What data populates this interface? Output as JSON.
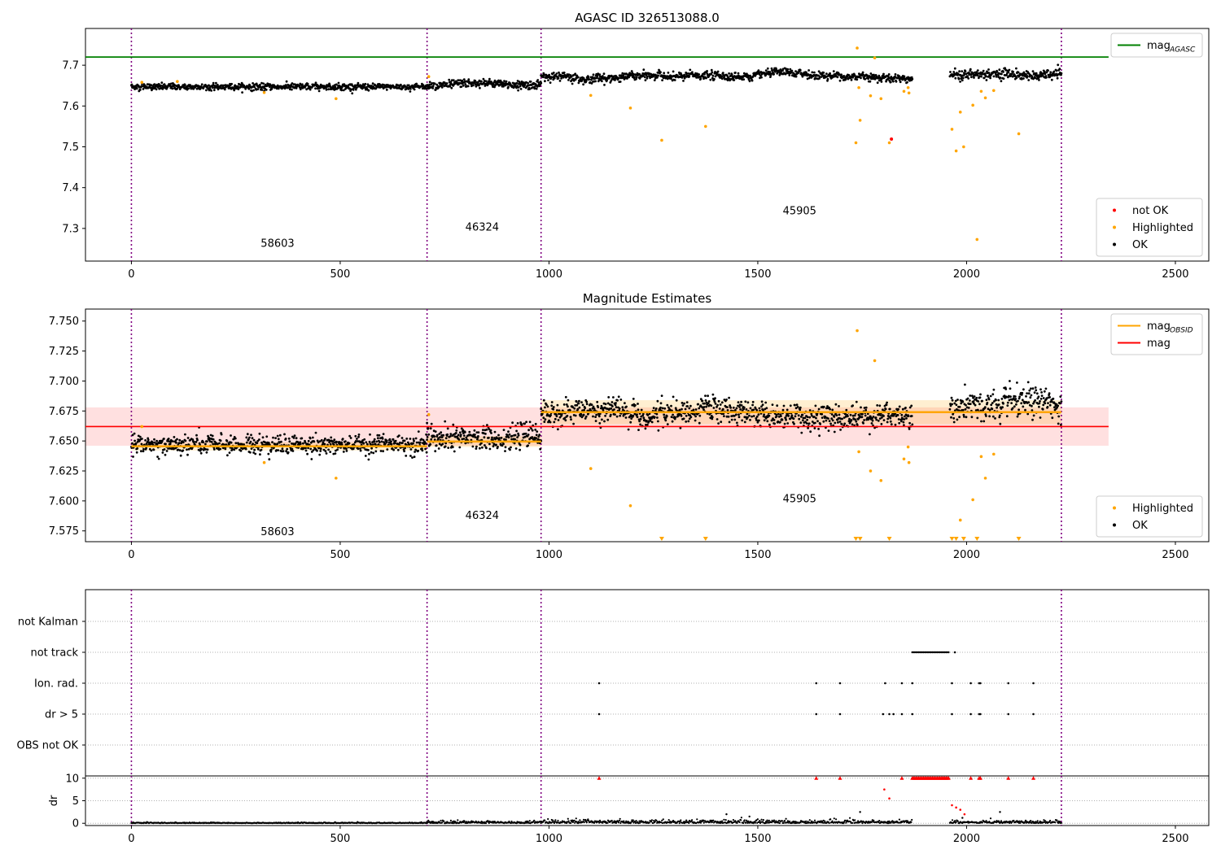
{
  "chart_data": [
    {
      "type": "scatter",
      "title": "AGASC ID 326513088.0",
      "xlim": [
        -110,
        2580
      ],
      "ylim": [
        7.22,
        7.79
      ],
      "xticks": [
        0,
        500,
        1000,
        1500,
        2000,
        2500
      ],
      "yticks": [
        7.3,
        7.4,
        7.5,
        7.6,
        7.7
      ],
      "ytick_labels": [
        "7.3",
        "7.4",
        "7.5",
        "7.6",
        "7.7"
      ],
      "vlines": [
        0,
        708,
        981,
        2227
      ],
      "hline": {
        "name": "mag_AGASC",
        "y": 7.72,
        "color": "#008000",
        "x_end": 2340
      },
      "obsid_labels": [
        {
          "text": "58603",
          "x": 350,
          "y": 7.255
        },
        {
          "text": "46324",
          "x": 840,
          "y": 7.295
        },
        {
          "text": "45905",
          "x": 1600,
          "y": 7.335
        }
      ],
      "segments": [
        {
          "x0": 0,
          "x1": 708,
          "level": 7.647,
          "noise": 0.004,
          "walk": 0.0,
          "n": 700
        },
        {
          "x0": 708,
          "x1": 981,
          "level": 7.652,
          "noise": 0.005,
          "walk": 0.004,
          "n": 280
        },
        {
          "x0": 981,
          "x1": 1870,
          "level": 7.673,
          "noise": 0.005,
          "walk": 0.008,
          "n": 880
        },
        {
          "x0": 1960,
          "x1": 2227,
          "level": 7.675,
          "noise": 0.006,
          "walk": 0.008,
          "n": 260
        }
      ],
      "highlighted": [
        [
          25,
          7.658
        ],
        [
          110,
          7.66
        ],
        [
          318,
          7.633
        ],
        [
          490,
          7.618
        ],
        [
          712,
          7.672
        ],
        [
          1100,
          7.626
        ],
        [
          1195,
          7.595
        ],
        [
          1270,
          7.516
        ],
        [
          1375,
          7.55
        ],
        [
          1735,
          7.51
        ],
        [
          1738,
          7.742
        ],
        [
          1742,
          7.645
        ],
        [
          1745,
          7.565
        ],
        [
          1770,
          7.625
        ],
        [
          1780,
          7.718
        ],
        [
          1795,
          7.618
        ],
        [
          1815,
          7.51
        ],
        [
          1850,
          7.636
        ],
        [
          1860,
          7.645
        ],
        [
          1862,
          7.632
        ],
        [
          1965,
          7.543
        ],
        [
          1975,
          7.49
        ],
        [
          1985,
          7.585
        ],
        [
          1993,
          7.5
        ],
        [
          2015,
          7.602
        ],
        [
          2025,
          7.273
        ],
        [
          2035,
          7.636
        ],
        [
          2045,
          7.62
        ],
        [
          2065,
          7.638
        ],
        [
          2125,
          7.532
        ]
      ],
      "not_ok": [
        [
          1820,
          7.519
        ]
      ],
      "legends": [
        {
          "position": "upper-right",
          "entries": [
            {
              "label": "mag",
              "sub": "AGASC",
              "kind": "line",
              "color": "#008000"
            }
          ]
        },
        {
          "position": "lower-right",
          "entries": [
            {
              "label": "not OK",
              "kind": "dot",
              "color": "#ff0000"
            },
            {
              "label": "Highlighted",
              "kind": "dot",
              "color": "#ffa500"
            },
            {
              "label": "OK",
              "kind": "dot",
              "color": "#000000"
            }
          ]
        }
      ]
    },
    {
      "type": "scatter",
      "title": "Magnitude Estimates",
      "xlim": [
        -110,
        2580
      ],
      "ylim": [
        7.566,
        7.76
      ],
      "xticks": [
        0,
        500,
        1000,
        1500,
        2000,
        2500
      ],
      "yticks": [
        7.575,
        7.6,
        7.625,
        7.65,
        7.675,
        7.7,
        7.725,
        7.75
      ],
      "ytick_labels": [
        "7.575",
        "7.600",
        "7.625",
        "7.650",
        "7.675",
        "7.700",
        "7.725",
        "7.750"
      ],
      "vlines": [
        0,
        708,
        981,
        2227
      ],
      "mag_line": {
        "name": "mag",
        "y": 7.662,
        "lo": 7.646,
        "hi": 7.678,
        "x_end": 2340,
        "color": "#ff0000"
      },
      "obsid_mag": [
        {
          "x0": 0,
          "x1": 708,
          "y": 7.6455,
          "lo": 7.642,
          "hi": 7.649
        },
        {
          "x0": 708,
          "x1": 981,
          "y": 7.6495,
          "lo": 7.645,
          "hi": 7.654
        },
        {
          "x0": 981,
          "x1": 2227,
          "y": 7.674,
          "lo": 7.664,
          "hi": 7.684
        }
      ],
      "obsid_labels": [
        {
          "text": "58603",
          "x": 350,
          "y": 7.5715
        },
        {
          "text": "46324",
          "x": 840,
          "y": 7.585
        },
        {
          "text": "45905",
          "x": 1600,
          "y": 7.599
        }
      ],
      "segments": [
        {
          "x0": 0,
          "x1": 708,
          "level": 7.647,
          "noise": 0.004,
          "walk": 0.0,
          "n": 700
        },
        {
          "x0": 708,
          "x1": 981,
          "level": 7.652,
          "noise": 0.005,
          "walk": 0.004,
          "n": 280
        },
        {
          "x0": 981,
          "x1": 1870,
          "level": 7.673,
          "noise": 0.005,
          "walk": 0.008,
          "n": 880
        },
        {
          "x0": 1960,
          "x1": 2227,
          "level": 7.675,
          "noise": 0.006,
          "walk": 0.008,
          "n": 260
        }
      ],
      "highlighted": [
        [
          25,
          7.662
        ],
        [
          318,
          7.632
        ],
        [
          490,
          7.619
        ],
        [
          712,
          7.672
        ],
        [
          1100,
          7.627
        ],
        [
          1195,
          7.596
        ],
        [
          1738,
          7.742
        ],
        [
          1742,
          7.641
        ],
        [
          1770,
          7.625
        ],
        [
          1780,
          7.717
        ],
        [
          1795,
          7.617
        ],
        [
          1850,
          7.635
        ],
        [
          1860,
          7.645
        ],
        [
          1862,
          7.632
        ],
        [
          1985,
          7.584
        ],
        [
          2015,
          7.601
        ],
        [
          2035,
          7.637
        ],
        [
          2045,
          7.619
        ],
        [
          2065,
          7.639
        ]
      ],
      "below_axis_markers": [
        1270,
        1375,
        1735,
        1745,
        1815,
        1965,
        1975,
        1993,
        2025,
        2125
      ],
      "legends": [
        {
          "position": "upper-right",
          "entries": [
            {
              "label": "mag",
              "sub": "OBSID",
              "kind": "line",
              "color": "#ffa500"
            },
            {
              "label": "mag",
              "kind": "line",
              "color": "#ff0000"
            }
          ]
        },
        {
          "position": "lower-right",
          "entries": [
            {
              "label": "Highlighted",
              "kind": "dot",
              "color": "#ffa500"
            },
            {
              "label": "OK",
              "kind": "dot",
              "color": "#000000"
            }
          ]
        }
      ]
    },
    {
      "type": "scatter",
      "title": "",
      "xlim": [
        -110,
        2580
      ],
      "categories": [
        "not Kalman",
        "not track",
        "Ion. rad.",
        "dr > 5",
        "OBS not OK"
      ],
      "vlines": [
        0,
        708,
        981,
        2227
      ],
      "not_track": {
        "x0": 1870,
        "x1": 1958,
        "extra": [
          1972
        ]
      },
      "ion_rad": [
        1120,
        1640,
        1697,
        1805,
        1845,
        1870,
        1965,
        2010,
        2030,
        2033,
        2100,
        2160
      ],
      "dr_gt_5": [
        1120,
        1640,
        1697,
        1800,
        1815,
        1825,
        1845,
        1870,
        1965,
        2010,
        2030,
        2033,
        2100,
        2160
      ]
    },
    {
      "type": "scatter",
      "title": "",
      "ylabel": "dr",
      "xlim": [
        -110,
        2580
      ],
      "ylim": [
        -0.5,
        10.5
      ],
      "xticks": [
        0,
        500,
        1000,
        1500,
        2000,
        2500
      ],
      "yticks": [
        0,
        5,
        10
      ],
      "ytick_labels": [
        "0",
        "5",
        "10"
      ],
      "vlines": [
        0,
        708,
        981,
        2227
      ],
      "capped": [
        1120,
        1640,
        1697,
        1845,
        2010,
        2030,
        2033,
        2100,
        2160
      ],
      "capped_run": {
        "x0": 1870,
        "x1": 1958
      },
      "red_points": [
        [
          1803,
          7.5
        ],
        [
          1815,
          5.5
        ],
        [
          1965,
          4.0
        ],
        [
          1975,
          3.5
        ],
        [
          1985,
          3.0
        ],
        [
          1995,
          2.0
        ]
      ],
      "black_points": [
        [
          1425,
          2.0
        ],
        [
          1480,
          1.5
        ],
        [
          1745,
          2.5
        ],
        [
          2080,
          2.5
        ],
        [
          1990,
          1.2
        ]
      ]
    }
  ]
}
